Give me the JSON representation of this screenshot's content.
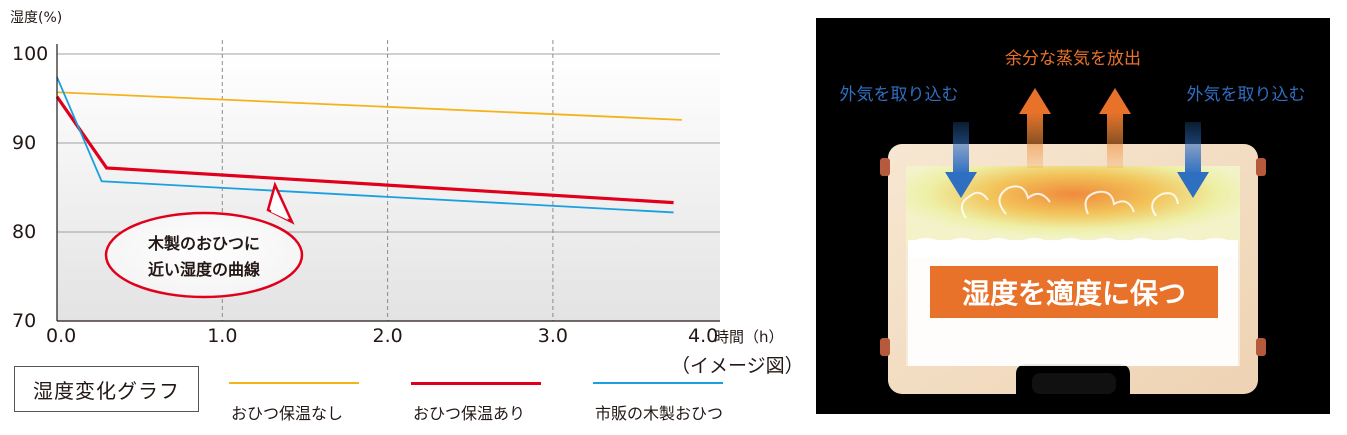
{
  "chart_data": {
    "type": "line",
    "ylabel": "湿度(%)",
    "xlabel": "時間（h）",
    "note": "（イメージ図）",
    "xlim": [
      0,
      4.0
    ],
    "ylim": [
      70,
      100
    ],
    "x_ticks": [
      "0.0",
      "1.0",
      "2.0",
      "3.0",
      "4.0"
    ],
    "y_ticks": [
      "70",
      "80",
      "90",
      "100"
    ],
    "grid": true,
    "callout": [
      "木製のおひつに",
      "近い湿度の曲線"
    ],
    "legend_title": "湿度変化グラフ",
    "legend_placement": "bottom",
    "series": [
      {
        "name": "おひつ保温なし",
        "color": "#f5b31a",
        "width": 1.8,
        "points": [
          [
            0.0,
            95.7
          ],
          [
            3.78,
            92.6
          ]
        ]
      },
      {
        "name": "おひつ保温あり",
        "color": "#e0001b",
        "width": 3.2,
        "points": [
          [
            0.0,
            95.2
          ],
          [
            0.3,
            87.2
          ],
          [
            3.73,
            83.3
          ]
        ]
      },
      {
        "name": "市販の木製おひつ",
        "color": "#1aa0e0",
        "width": 1.8,
        "points": [
          [
            0.0,
            97.4
          ],
          [
            0.27,
            85.7
          ],
          [
            3.73,
            82.2
          ]
        ]
      }
    ]
  },
  "illustration": {
    "top_label": "余分な蒸気を放出",
    "left_label": "外気を取り込む",
    "right_label": "外気を取り込む",
    "banner": "湿度を適度に保つ",
    "colors": {
      "orange": "#e8722a",
      "blue": "#2f6fc2",
      "wood": "#f2dcc2"
    }
  }
}
